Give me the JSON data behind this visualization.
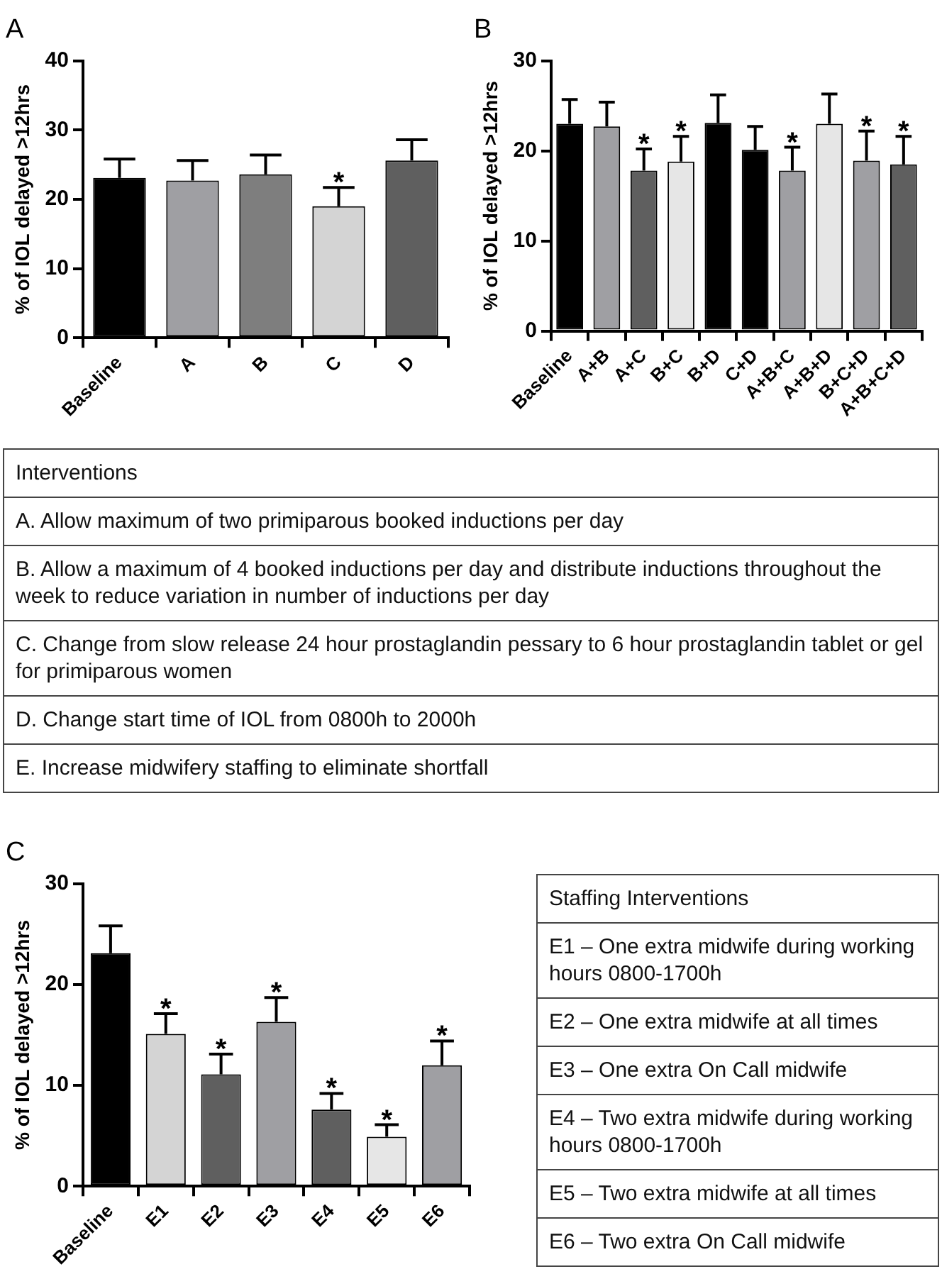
{
  "chart_data": [
    {
      "type": "bar",
      "title": "A",
      "ylabel": "% of IOL delayed >12hrs",
      "categories": [
        "Baseline",
        "A",
        "B",
        "C",
        "D"
      ],
      "values": [
        23.1,
        22.7,
        23.6,
        19.0,
        25.6
      ],
      "errors": [
        [
          23.1,
          25.8
        ],
        [
          22.7,
          25.6
        ],
        [
          23.6,
          26.4
        ],
        [
          19.0,
          21.7
        ],
        [
          25.6,
          28.6
        ]
      ],
      "colors": [
        "#000000",
        "#9f9fa3",
        "#7e7e7e",
        "#d4d4d4",
        "#5f5f5f"
      ],
      "ylim": [
        0,
        40
      ],
      "yticks": [
        0,
        10,
        20,
        30,
        40
      ],
      "grid": false,
      "annotations": [
        {
          "text": "*",
          "x": "C",
          "y": 21.7
        }
      ]
    },
    {
      "type": "bar",
      "title": "B",
      "ylabel": "% of IOL delayed >12hrs",
      "categories": [
        "Baseline",
        "A+B",
        "A+C",
        "B+C",
        "B+D",
        "C+D",
        "A+B+C",
        "A+B+D",
        "B+C+D",
        "A+B+C+D"
      ],
      "values": [
        23.0,
        22.7,
        17.8,
        18.8,
        23.1,
        20.1,
        17.8,
        23.0,
        18.9,
        18.5
      ],
      "errors": [
        [
          23.0,
          25.7
        ],
        [
          22.7,
          25.4
        ],
        [
          17.8,
          20.2
        ],
        [
          18.8,
          21.6
        ],
        [
          23.1,
          26.2
        ],
        [
          20.1,
          22.7
        ],
        [
          17.8,
          20.4
        ],
        [
          23.0,
          26.3
        ],
        [
          18.9,
          22.2
        ],
        [
          18.5,
          21.6
        ]
      ],
      "colors": [
        "#000000",
        "#9f9fa3",
        "#5f5f5f",
        "#e6e6e6",
        "#000000",
        "#000000",
        "#9f9fa3",
        "#e6e6e6",
        "#9f9fa3",
        "#5f5f5f"
      ],
      "ylim": [
        0,
        30
      ],
      "yticks": [
        0,
        10,
        20,
        30
      ],
      "grid": false,
      "annotations": [
        {
          "text": "*",
          "x": "A+C",
          "y": 20.2
        },
        {
          "text": "*",
          "x": "B+C",
          "y": 21.6
        },
        {
          "text": "*",
          "x": "A+B+C",
          "y": 20.4
        },
        {
          "text": "*",
          "x": "B+C+D",
          "y": 22.2
        },
        {
          "text": "*",
          "x": "A+B+C+D",
          "y": 21.6
        }
      ]
    },
    {
      "type": "other",
      "title": "Interventions",
      "annotations": [
        "A. Allow maximum of two primiparous booked inductions per day",
        "B. Allow a maximum of 4 booked inductions per day and distribute inductions throughout the week to reduce variation in number of inductions per day",
        "C. Change from slow release 24 hour prostaglandin pessary to 6 hour prostaglandin tablet or gel for primiparous women",
        "D. Change start time of IOL from 0800h to 2000h",
        "E. Increase midwifery staffing to eliminate shortfall"
      ]
    },
    {
      "type": "bar",
      "title": "C",
      "ylabel": "% of IOL delayed >12hrs",
      "categories": [
        "Baseline",
        "E1",
        "E2",
        "E3",
        "E4",
        "E5",
        "E6"
      ],
      "values": [
        23.1,
        15.1,
        11.1,
        16.3,
        7.6,
        4.9,
        12.0
      ],
      "errors": [
        [
          23.1,
          25.8
        ],
        [
          15.1,
          17.1
        ],
        [
          11.1,
          13.1
        ],
        [
          16.3,
          18.7
        ],
        [
          7.6,
          9.2
        ],
        [
          4.9,
          6.1
        ],
        [
          12.0,
          14.4
        ]
      ],
      "colors": [
        "#000000",
        "#d4d4d4",
        "#5f5f5f",
        "#9f9fa3",
        "#5f5f5f",
        "#e6e6e6",
        "#9f9fa3"
      ],
      "ylim": [
        0,
        30
      ],
      "yticks": [
        0,
        10,
        20,
        30
      ],
      "grid": false,
      "annotations": [
        {
          "text": "*",
          "x": "E1",
          "y": 17.1
        },
        {
          "text": "*",
          "x": "E2",
          "y": 13.1
        },
        {
          "text": "*",
          "x": "E3",
          "y": 18.7
        },
        {
          "text": "*",
          "x": "E4",
          "y": 9.2
        },
        {
          "text": "*",
          "x": "E5",
          "y": 6.1
        },
        {
          "text": "*",
          "x": "E6",
          "y": 14.4
        }
      ]
    },
    {
      "type": "other",
      "title": "Staffing Interventions",
      "annotations": [
        "E1 – One extra midwife during working hours 0800-1700h",
        "E2 – One extra midwife at all times",
        "E3 – One extra On Call midwife",
        "E4 – Two extra midwife during working hours 0800-1700h",
        "E5 – Two extra midwife at all times",
        "E6 – Two extra On Call midwife"
      ]
    }
  ]
}
